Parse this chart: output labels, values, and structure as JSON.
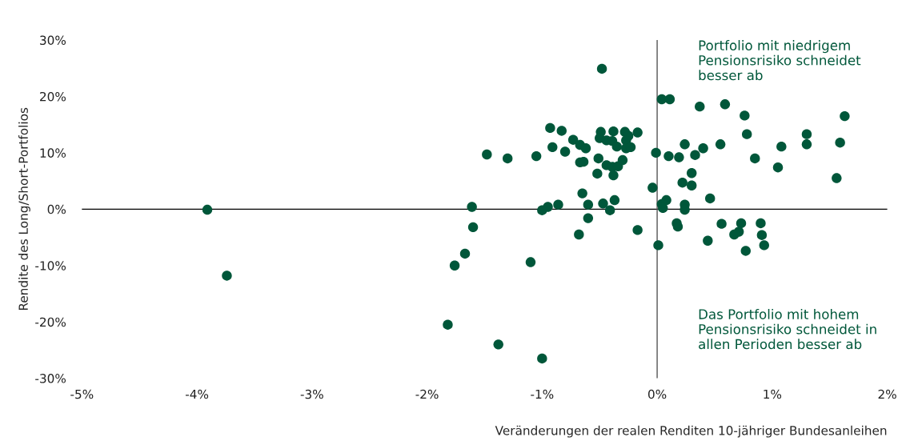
{
  "chart_data": {
    "type": "scatter",
    "xlabel": "Veränderungen der realen Renditen 10-jähriger Bundesanleihen",
    "ylabel": "Rendite des Long/Short-Portfolios",
    "xlim": [
      -5,
      2
    ],
    "ylim": [
      -30,
      30
    ],
    "xticks": [
      {
        "value": -5,
        "label": "-5%"
      },
      {
        "value": -4,
        "label": "-4%"
      },
      {
        "value": -3,
        "label": "-3%"
      },
      {
        "value": -2,
        "label": "-2%"
      },
      {
        "value": -1,
        "label": "-1%"
      },
      {
        "value": 0,
        "label": "0%"
      },
      {
        "value": 1,
        "label": "1%"
      },
      {
        "value": 2,
        "label": "2%"
      }
    ],
    "yticks": [
      {
        "value": -30,
        "label": "-30%"
      },
      {
        "value": -20,
        "label": "-20%"
      },
      {
        "value": -10,
        "label": "-10%"
      },
      {
        "value": 0,
        "label": "0%"
      },
      {
        "value": 10,
        "label": "10%"
      },
      {
        "value": 20,
        "label": "20%"
      },
      {
        "value": 30,
        "label": "30%"
      }
    ],
    "grid": false,
    "marker": "circle",
    "ref_lines": [
      {
        "axis": "y",
        "value": 0,
        "color": "#000000"
      },
      {
        "axis": "x",
        "value": 0,
        "color": "#555555"
      }
    ],
    "annotations": [
      "Portfolio mit niedrigem\nPensionsrisiko schneidet\nbesser ab",
      "Das Portfolio mit hohem\nPensionsrisiko schneidet in\nallen Perioden besser ab"
    ],
    "series": [
      {
        "color": "#00573a",
        "x": [
          -3.91,
          -3.74,
          -0.48,
          -0.93,
          -0.83,
          -0.73,
          -0.67,
          -0.62,
          -0.49,
          -0.5,
          -0.38,
          -0.28,
          -0.17,
          -0.44,
          -0.39,
          -0.35,
          -0.25,
          -0.27,
          -0.27,
          -0.23,
          -1.48,
          -1.3,
          -1.05,
          -0.91,
          -0.8,
          -0.67,
          -0.64,
          -0.51,
          -0.44,
          -0.39,
          -0.34,
          -0.3,
          -0.52,
          -0.38,
          -0.01,
          -0.04,
          -0.65,
          -1.61,
          -1.0,
          -0.95,
          -0.86,
          -0.6,
          -0.47,
          -0.41,
          -0.37,
          -0.6,
          -1.6,
          -0.17,
          -0.68,
          0.01,
          -1.67,
          -1.76,
          -1.1,
          -1.82,
          -1.38,
          -1.0,
          0.04,
          0.11,
          0.37,
          0.59,
          0.76,
          1.63,
          0.78,
          1.3,
          1.3,
          1.59,
          1.08,
          0.24,
          0.55,
          0.4,
          0.33,
          0.1,
          0.19,
          0.85,
          1.05,
          1.56,
          0.3,
          0.22,
          0.3,
          0.08,
          0.04,
          0.05,
          0.24,
          0.24,
          0.46,
          0.17,
          0.18,
          0.56,
          0.73,
          0.9,
          0.71,
          0.67,
          0.91,
          0.44,
          0.93,
          0.77
        ],
        "values": [
          -0.1,
          -11.8,
          24.9,
          14.4,
          13.9,
          12.3,
          11.4,
          10.8,
          13.7,
          12.6,
          13.8,
          13.7,
          13.6,
          12.2,
          12.1,
          11.1,
          13.0,
          12.2,
          10.8,
          11.0,
          9.7,
          9.0,
          9.4,
          11.0,
          10.2,
          8.3,
          8.4,
          9.0,
          7.8,
          7.5,
          7.6,
          8.7,
          6.3,
          6.0,
          10.0,
          3.8,
          2.8,
          0.4,
          -0.2,
          0.4,
          0.8,
          0.8,
          1.0,
          -0.2,
          1.6,
          -1.6,
          -3.2,
          -3.7,
          -4.5,
          -6.4,
          -7.9,
          -10.0,
          -9.4,
          -20.5,
          -24.0,
          -26.5,
          19.5,
          19.5,
          18.2,
          18.6,
          16.6,
          16.5,
          13.3,
          13.3,
          11.5,
          11.8,
          11.1,
          11.5,
          11.5,
          10.8,
          9.6,
          9.4,
          9.2,
          9.0,
          7.4,
          5.5,
          6.4,
          4.7,
          4.2,
          1.6,
          0.9,
          0.2,
          0.8,
          -0.1,
          1.9,
          -2.5,
          -3.1,
          -2.6,
          -2.5,
          -2.5,
          -4.0,
          -4.5,
          -4.6,
          -5.6,
          -6.4,
          -7.4
        ]
      }
    ]
  }
}
